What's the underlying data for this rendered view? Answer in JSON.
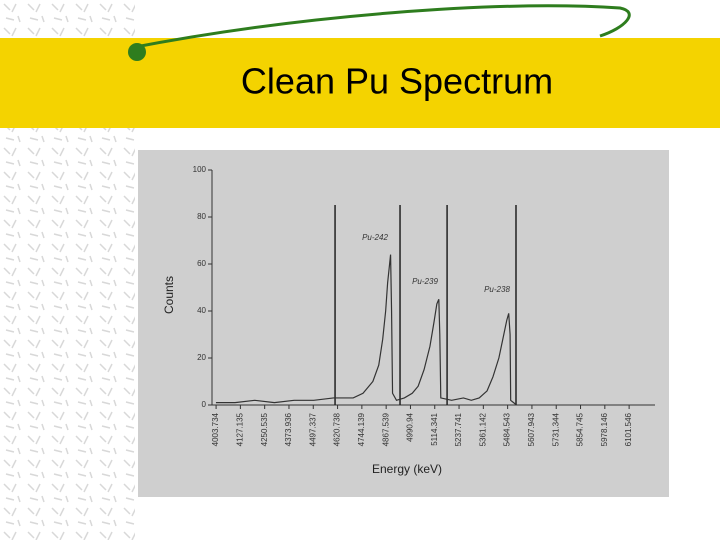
{
  "slide_title": "Clean Pu Spectrum",
  "chart_data": {
    "type": "line",
    "y_label": "Counts",
    "x_label": "Energy (keV)",
    "annotations": [
      "Pu-242",
      "Pu-239",
      "Pu-238"
    ],
    "xlim": [
      3983,
      6233
    ],
    "ylim": [
      0,
      100
    ],
    "yticks": [
      0,
      20,
      40,
      60,
      80,
      100
    ],
    "xticks": [
      4003.734,
      4127.135,
      4250.535,
      4373.936,
      4497.337,
      4620.738,
      4744.139,
      4867.539,
      4990.94,
      5114.341,
      5237.741,
      5361.142,
      5484.543,
      5607.943,
      5731.344,
      5854.745,
      5978.146,
      6101.546
    ],
    "roi_lines": [
      4608,
      4938,
      5177,
      5527
    ],
    "color": "#333333",
    "x": [
      4003,
      4100,
      4200,
      4300,
      4400,
      4500,
      4600,
      4700,
      4750,
      4800,
      4830,
      4850,
      4865,
      4875,
      4885,
      4890,
      4895,
      4900,
      4920,
      4960,
      5000,
      5030,
      5060,
      5090,
      5110,
      5125,
      5135,
      5140,
      5145,
      5200,
      5260,
      5300,
      5340,
      5380,
      5410,
      5440,
      5460,
      5480,
      5490,
      5497,
      5500,
      5530
    ],
    "values": [
      1,
      1,
      2,
      1,
      2,
      2,
      3,
      3,
      5,
      10,
      17,
      28,
      40,
      52,
      60,
      64,
      40,
      5,
      2,
      3,
      5,
      8,
      15,
      25,
      35,
      43,
      45,
      30,
      3,
      2,
      3,
      2,
      3,
      6,
      12,
      20,
      28,
      36,
      39,
      30,
      2,
      0
    ]
  }
}
